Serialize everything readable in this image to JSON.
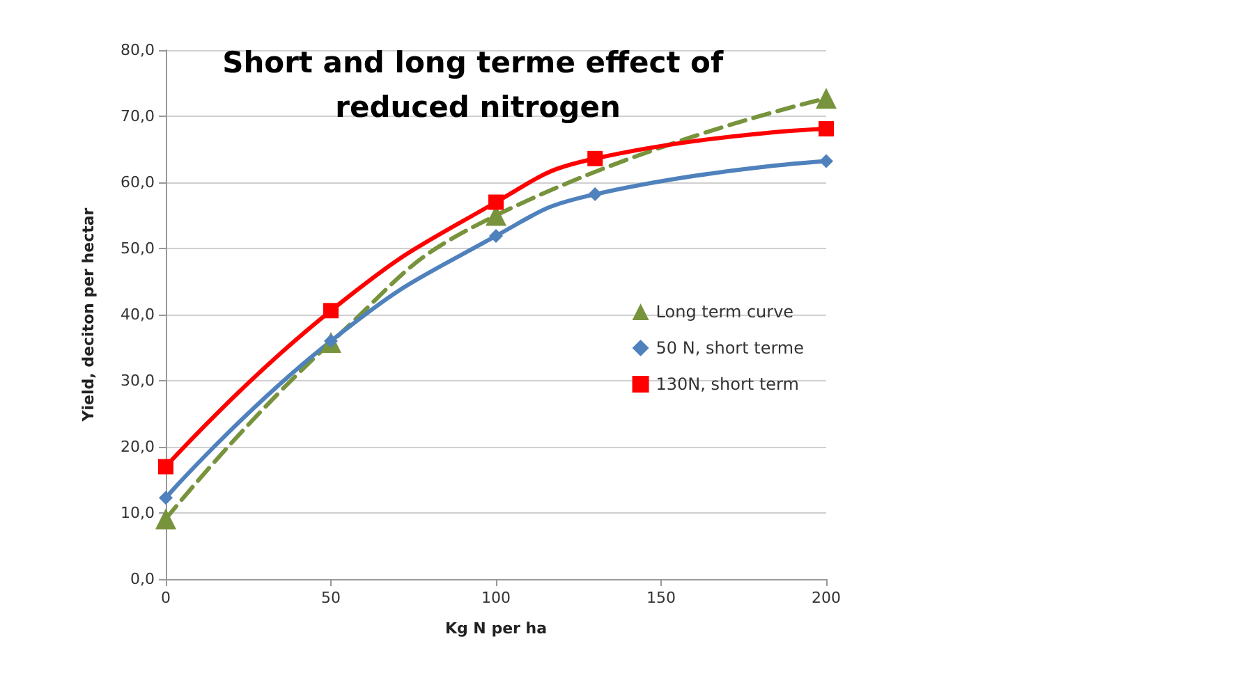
{
  "chart_data": {
    "type": "line",
    "title": "Short and long terme effect of reduced nitrogen",
    "xlabel": "Kg N per ha",
    "ylabel": "Yield, deciton per hectar",
    "xlim": [
      0,
      200
    ],
    "xticks": [
      0,
      50,
      100,
      150,
      200
    ],
    "ylim": [
      0,
      80
    ],
    "yticks": [
      {
        "value": 0,
        "label": "0,0"
      },
      {
        "value": 10,
        "label": "10,0"
      },
      {
        "value": 20,
        "label": "20,0"
      },
      {
        "value": 30,
        "label": "30,0"
      },
      {
        "value": 40,
        "label": "40,0"
      },
      {
        "value": 50,
        "label": "50,0"
      },
      {
        "value": 60,
        "label": "60,0"
      },
      {
        "value": 70,
        "label": "70,0"
      },
      {
        "value": 80,
        "label": "80,0"
      }
    ],
    "grid": "y",
    "legend": "right",
    "series": [
      {
        "name": "Long term curve",
        "color": "#77933c",
        "marker": "triangle",
        "line_style": "dashed",
        "x": [
          0,
          50,
          100,
          200
        ],
        "values": [
          9.1,
          35.8,
          55.0,
          72.7
        ]
      },
      {
        "name": "50 N, short terme",
        "color": "#4f81bd",
        "marker": "diamond",
        "line_style": "solid",
        "x": [
          0,
          50,
          100,
          130,
          200
        ],
        "values": [
          12.3,
          36.0,
          51.9,
          58.2,
          63.2
        ]
      },
      {
        "name": "130N, short term",
        "color": "#ff0000",
        "marker": "square",
        "line_style": "solid",
        "x": [
          0,
          50,
          100,
          130,
          200
        ],
        "values": [
          17.0,
          40.6,
          57.0,
          63.6,
          68.1
        ]
      }
    ]
  }
}
